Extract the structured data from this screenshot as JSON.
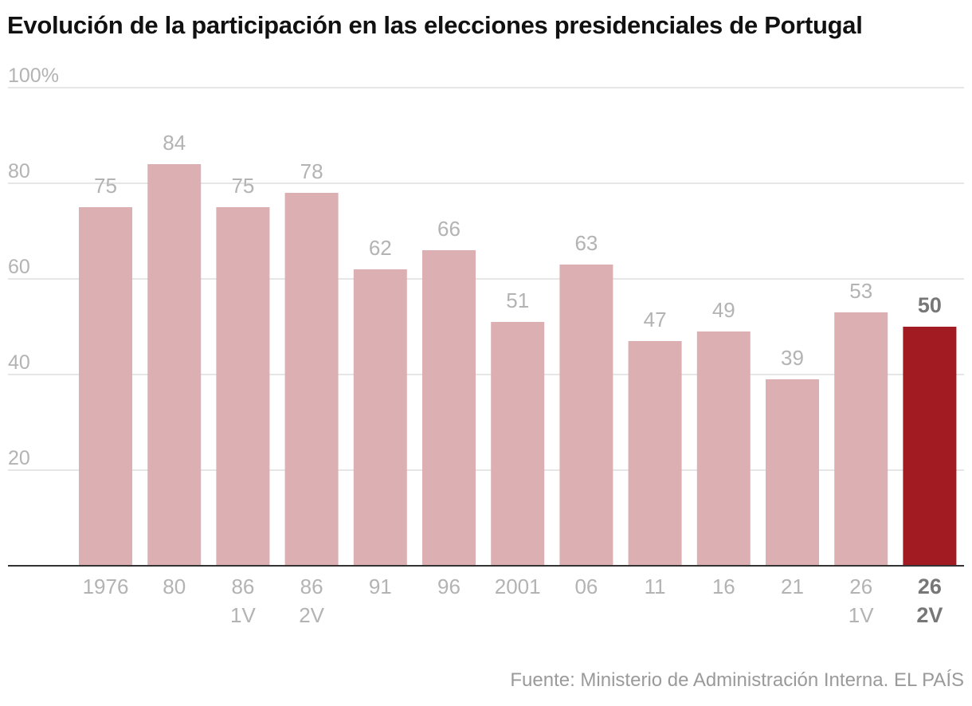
{
  "chart_data": {
    "type": "bar",
    "title": "Evolución de la participación en las elecciones presidenciales de Portugal",
    "categories": [
      "1976",
      "80",
      "86\n1V",
      "86\n2V",
      "91",
      "96",
      "2001",
      "06",
      "11",
      "16",
      "21",
      "26\n1V",
      "26\n2V"
    ],
    "values": [
      75,
      84,
      75,
      78,
      62,
      66,
      51,
      63,
      47,
      49,
      39,
      53,
      50
    ],
    "value_labels": [
      "75",
      "84",
      "75",
      "78",
      "62",
      "66",
      "51",
      "63",
      "47",
      "49",
      "39",
      "53",
      "50"
    ],
    "highlight_index": 12,
    "ylim": [
      0,
      100
    ],
    "yticks": [
      20,
      40,
      60,
      80,
      100
    ],
    "ytick_labels": [
      "20",
      "40",
      "60",
      "80",
      "100%"
    ],
    "xlabel": "",
    "ylabel": "",
    "grid": true,
    "source": "Fuente: Ministerio de Administración Interna. EL PAÍS"
  },
  "colors": {
    "bar": "#dcb0b3",
    "highlight_bar": "#a31b22",
    "label": "#b3b3b3",
    "highlight_label": "#777777",
    "grid": "#dddddd",
    "axis": "#333333"
  }
}
